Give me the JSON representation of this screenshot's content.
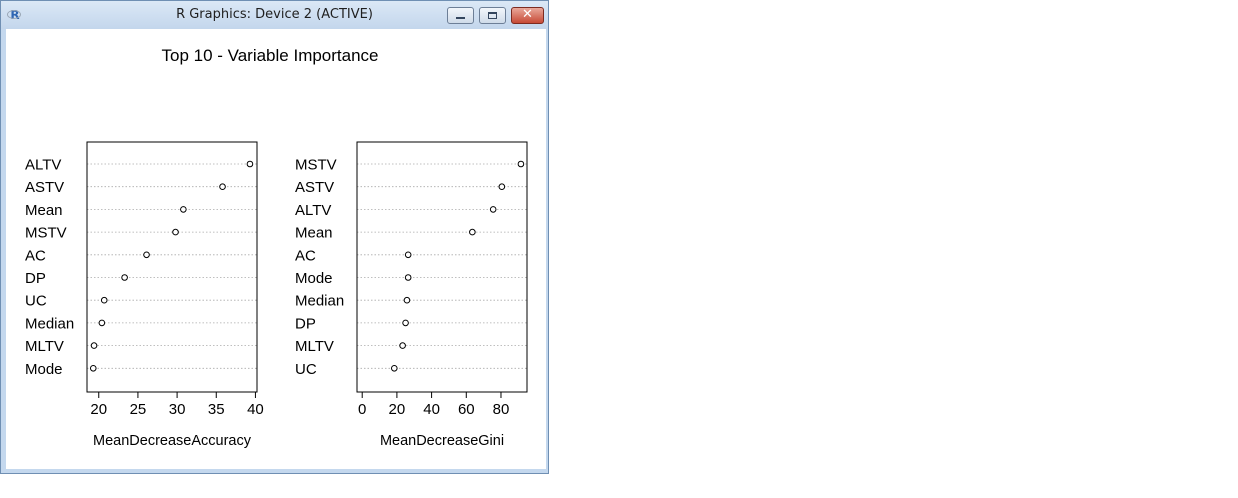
{
  "window": {
    "title": "R Graphics: Device 2 (ACTIVE)",
    "app_icon_label": "R",
    "close_glyph": "✕"
  },
  "chart_data": {
    "type": "dotchart",
    "title": "Top 10 - Variable Importance",
    "panels": [
      {
        "name": "accuracy",
        "xlabel": "MeanDecreaseAccuracy",
        "xlim": [
          18.5,
          40.2
        ],
        "xticks": [
          20,
          25,
          30,
          35,
          40
        ],
        "categories": [
          "ALTV",
          "ASTV",
          "Mean",
          "MSTV",
          "AC",
          "DP",
          "UC",
          "Median",
          "MLTV",
          "Mode"
        ],
        "values": [
          39.3,
          35.8,
          30.8,
          29.8,
          26.1,
          23.3,
          20.7,
          20.4,
          19.4,
          19.3
        ]
      },
      {
        "name": "gini",
        "xlabel": "MeanDecreaseGini",
        "xlim": [
          -3,
          95
        ],
        "xticks": [
          0,
          20,
          40,
          60,
          80
        ],
        "categories": [
          "MSTV",
          "ASTV",
          "ALTV",
          "Mean",
          "AC",
          "Mode",
          "Median",
          "DP",
          "MLTV",
          "UC"
        ],
        "values": [
          91.5,
          80.5,
          75.5,
          63.5,
          26.5,
          26.5,
          25.8,
          25.0,
          23.3,
          18.5
        ]
      }
    ],
    "grid": "dotted",
    "colors": {
      "background": "#ffffff",
      "ink": "#000000",
      "grid": "#aaaaaa"
    }
  }
}
